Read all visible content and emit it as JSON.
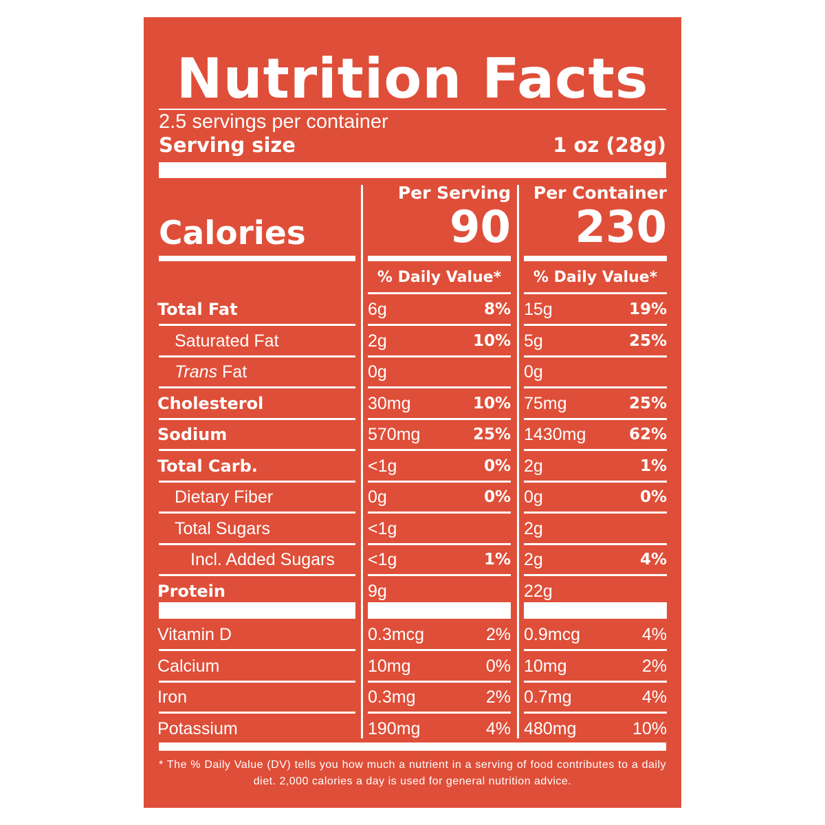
{
  "title": "Nutrition Facts",
  "servings_per_container": "2.5 servings per container",
  "serving_size_label": "Serving size",
  "serving_size_value": "1 oz (28g)",
  "col_headers": {
    "per_serving": "Per Serving",
    "per_container": "Per Container"
  },
  "calories_label": "Calories",
  "calories": {
    "per_serving": "90",
    "per_container": "230"
  },
  "daily_value_header": "% Daily Value*",
  "nutrients": [
    {
      "name": "Total Fat",
      "amount1": "6g",
      "pct1": "8%",
      "amount2": "15g",
      "pct2": "19%"
    },
    {
      "name": "Saturated Fat",
      "amount1": "2g",
      "pct1": "10%",
      "amount2": "5g",
      "pct2": "25%"
    },
    {
      "name_italic": "Trans",
      "name": "Fat",
      "amount1": "0g",
      "pct1": "",
      "amount2": "0g",
      "pct2": ""
    },
    {
      "name": "Cholesterol",
      "amount1": "30mg",
      "pct1": "10%",
      "amount2": "75mg",
      "pct2": "25%"
    },
    {
      "name": "Sodium",
      "amount1": "570mg",
      "pct1": "25%",
      "amount2": "1430mg",
      "pct2": "62%"
    },
    {
      "name": "Total Carb.",
      "amount1": "<1g",
      "pct1": "0%",
      "amount2": "2g",
      "pct2": "1%"
    },
    {
      "name": "Dietary Fiber",
      "amount1": "0g",
      "pct1": "0%",
      "amount2": "0g",
      "pct2": "0%"
    },
    {
      "name": "Total Sugars",
      "amount1": "<1g",
      "pct1": "",
      "amount2": "2g",
      "pct2": ""
    },
    {
      "name": "Incl. Added Sugars",
      "amount1": "<1g",
      "pct1": "1%",
      "amount2": "2g",
      "pct2": "4%"
    },
    {
      "name": "Protein",
      "amount1": "9g",
      "pct1": "",
      "amount2": "22g",
      "pct2": ""
    }
  ],
  "vitamins": [
    {
      "name": "Vitamin D",
      "amount1": "0.3mcg",
      "pct1": "2%",
      "amount2": "0.9mcg",
      "pct2": "4%"
    },
    {
      "name": "Calcium",
      "amount1": "10mg",
      "pct1": "0%",
      "amount2": "10mg",
      "pct2": "2%"
    },
    {
      "name": "Iron",
      "amount1": "0.3mg",
      "pct1": "2%",
      "amount2": "0.7mg",
      "pct2": "4%"
    },
    {
      "name": "Potassium",
      "amount1": "190mg",
      "pct1": "4%",
      "amount2": "480mg",
      "pct2": "10%"
    }
  ],
  "footnote": "* The % Daily Value (DV) tells you how much a nutrient in a serving of food contributes to a daily diet. 2,000 calories a day is used for general nutrition advice.",
  "colors": {
    "background": "#df4e38",
    "text": "#ffffff"
  }
}
